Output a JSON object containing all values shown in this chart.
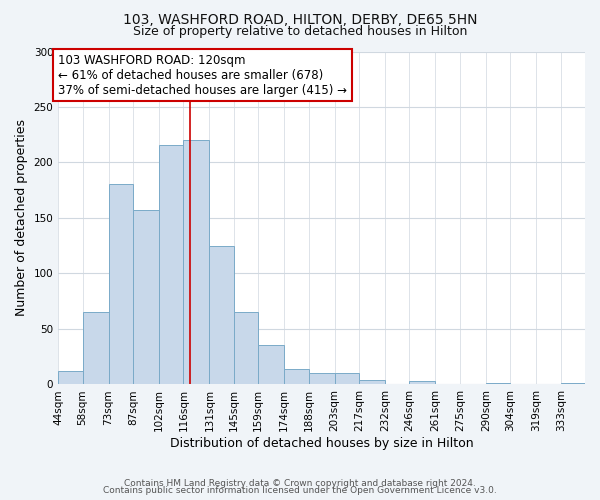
{
  "title": "103, WASHFORD ROAD, HILTON, DERBY, DE65 5HN",
  "subtitle": "Size of property relative to detached houses in Hilton",
  "xlabel": "Distribution of detached houses by size in Hilton",
  "ylabel": "Number of detached properties",
  "bin_labels": [
    "44sqm",
    "58sqm",
    "73sqm",
    "87sqm",
    "102sqm",
    "116sqm",
    "131sqm",
    "145sqm",
    "159sqm",
    "174sqm",
    "188sqm",
    "203sqm",
    "217sqm",
    "232sqm",
    "246sqm",
    "261sqm",
    "275sqm",
    "290sqm",
    "304sqm",
    "319sqm",
    "333sqm"
  ],
  "bar_heights": [
    12,
    65,
    181,
    157,
    216,
    220,
    125,
    65,
    36,
    14,
    10,
    10,
    4,
    0,
    3,
    0,
    0,
    1,
    0,
    0,
    1
  ],
  "bin_edges": [
    44,
    58,
    73,
    87,
    102,
    116,
    131,
    145,
    159,
    174,
    188,
    203,
    217,
    232,
    246,
    261,
    275,
    290,
    304,
    319,
    333,
    347
  ],
  "bar_color": "#c8d8ea",
  "bar_edge_color": "#7aaac8",
  "property_size": 120,
  "vline_color": "#cc0000",
  "annotation_line1": "103 WASHFORD ROAD: 120sqm",
  "annotation_line2": "← 61% of detached houses are smaller (678)",
  "annotation_line3": "37% of semi-detached houses are larger (415) →",
  "annotation_box_facecolor": "#ffffff",
  "annotation_box_edgecolor": "#cc0000",
  "ylim": [
    0,
    300
  ],
  "yticks": [
    0,
    50,
    100,
    150,
    200,
    250,
    300
  ],
  "footer_line1": "Contains HM Land Registry data © Crown copyright and database right 2024.",
  "footer_line2": "Contains public sector information licensed under the Open Government Licence v3.0.",
  "fig_background_color": "#f0f4f8",
  "plot_background_color": "#ffffff",
  "title_fontsize": 10,
  "subtitle_fontsize": 9,
  "axis_label_fontsize": 9,
  "tick_fontsize": 7.5,
  "annotation_fontsize": 8.5,
  "footer_fontsize": 6.5,
  "grid_color": "#d0d8e0"
}
